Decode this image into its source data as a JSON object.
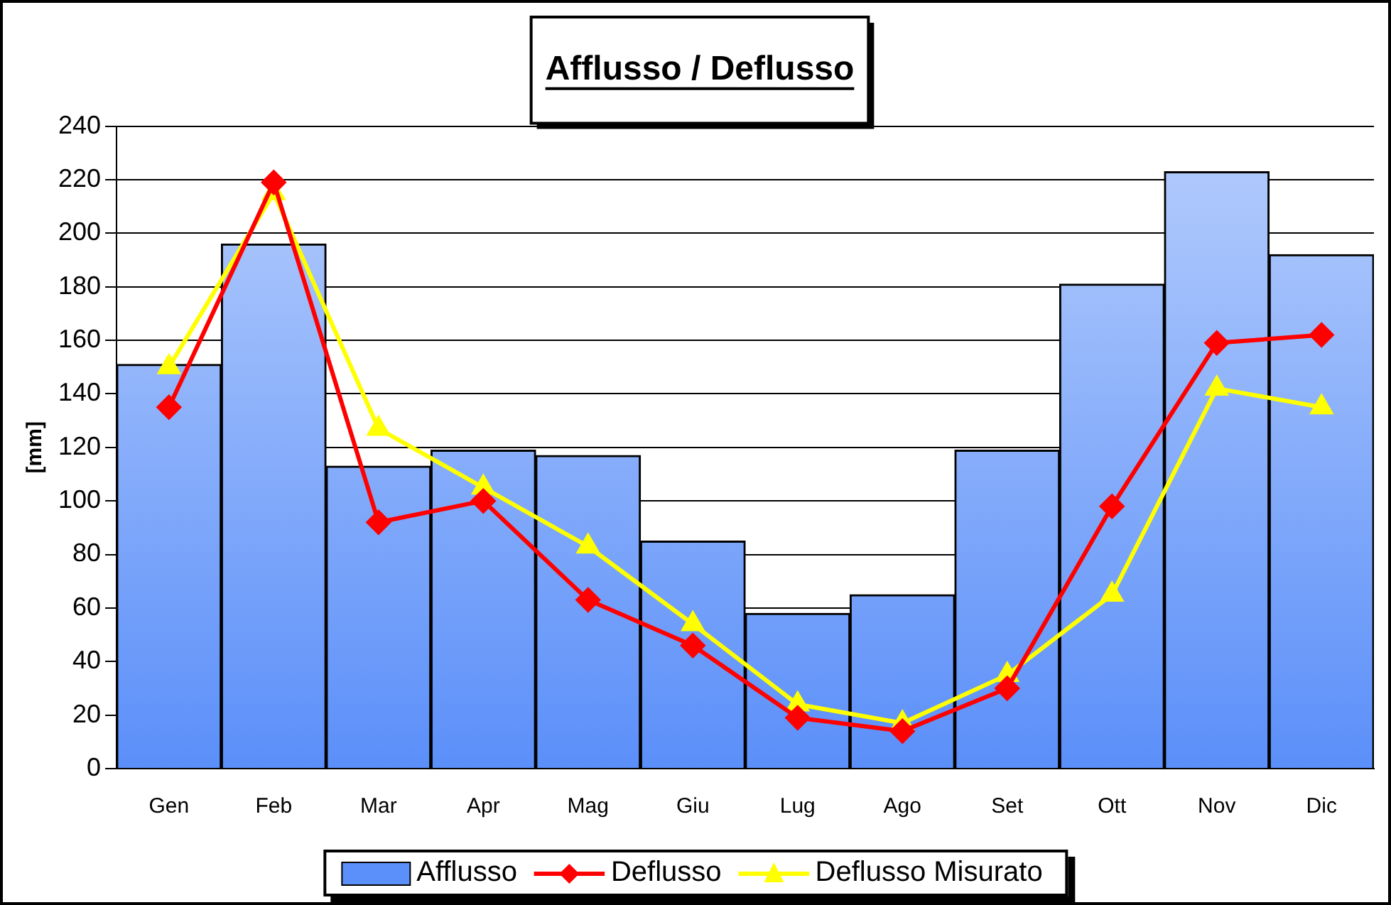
{
  "chart_data": {
    "type": "bar",
    "title": "Afflusso / Deflusso",
    "ylabel": "[mm]",
    "categories": [
      "Gen",
      "Feb",
      "Mar",
      "Apr",
      "Mag",
      "Giu",
      "Lug",
      "Ago",
      "Set",
      "Ott",
      "Nov",
      "Dic"
    ],
    "series": [
      {
        "name": "Afflusso",
        "color": "#5b8ff9",
        "values": [
          151,
          196,
          113,
          119,
          117,
          85,
          58,
          65,
          119,
          181,
          223,
          192
        ]
      },
      {
        "name": "Deflusso",
        "type": "line",
        "color": "#ff0000",
        "marker": "diamond",
        "values": [
          135,
          219,
          92,
          100,
          63,
          46,
          19,
          14,
          30,
          98,
          159,
          162
        ]
      },
      {
        "name": "Deflusso Misurato",
        "type": "line",
        "color": "#ffff00",
        "marker": "triangle",
        "values": [
          150,
          215,
          127,
          105,
          83,
          54,
          24,
          17,
          35,
          65,
          142,
          135
        ]
      }
    ],
    "ylim": [
      0,
      240
    ],
    "yticks": [
      0,
      20,
      40,
      60,
      80,
      100,
      120,
      140,
      160,
      180,
      200,
      220,
      240
    ],
    "grid": "y",
    "legend": "bottom"
  }
}
